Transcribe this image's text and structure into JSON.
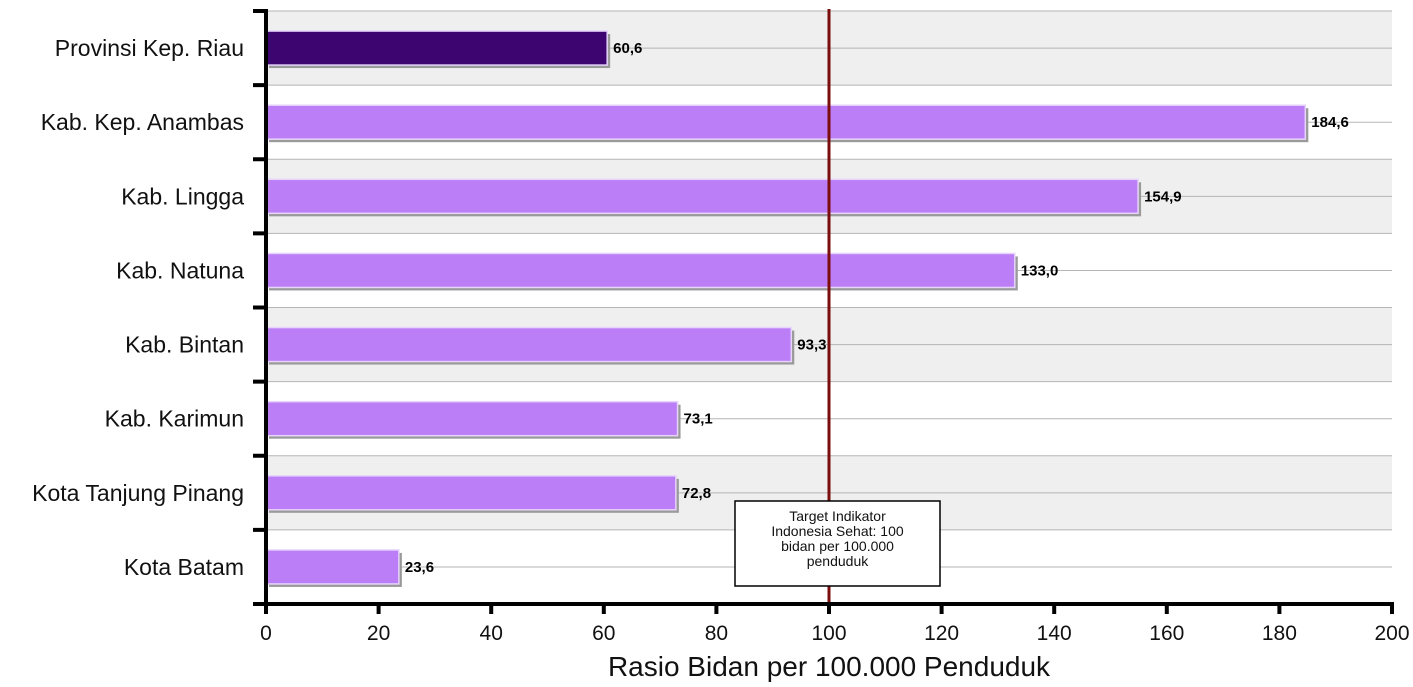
{
  "chart_data": {
    "type": "bar",
    "orientation": "horizontal",
    "categories": [
      "Provinsi Kep. Riau",
      "Kab. Kep. Anambas",
      "Kab. Lingga",
      "Kab. Natuna",
      "Kab. Bintan",
      "Kab. Karimun",
      "Kota Tanjung Pinang",
      "Kota Batam"
    ],
    "values": [
      60.6,
      184.6,
      154.9,
      133.0,
      93.3,
      73.1,
      72.8,
      23.6
    ],
    "value_labels": [
      "60,6",
      "184,6",
      "154,9",
      "133,0",
      "93,3",
      "73,1",
      "72,8",
      "23,6"
    ],
    "highlight_index": 0,
    "xlabel": "Rasio Bidan per 100.000 Penduduk",
    "ylabel": "",
    "xlim": [
      0,
      200
    ],
    "xticks": [
      0,
      20,
      40,
      60,
      80,
      100,
      120,
      140,
      160,
      180,
      200
    ],
    "grid": true,
    "reference_line": {
      "value": 100,
      "color": "#7b0d0d",
      "annotation": "Target Indikator\nIndonesia  Sehat: 100\nbidan per 100.000\npenduduk"
    },
    "colors": {
      "bar": "#bb7ef7",
      "highlight_bar": "#3d0570",
      "band": "#efefef"
    }
  }
}
